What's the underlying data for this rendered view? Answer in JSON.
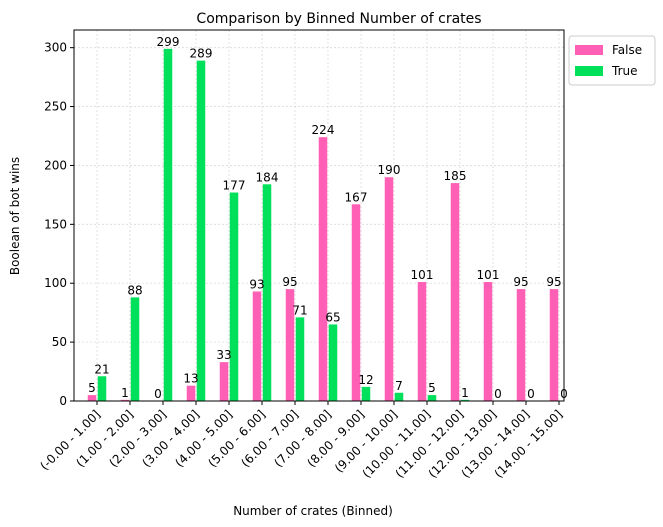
{
  "chart_data": {
    "type": "bar",
    "title": "Comparison by Binned Number of crates",
    "xlabel": "Number of crates (Binned)",
    "ylabel": "Boolean of bot wins",
    "categories": [
      "(-0.00 -  1.00]",
      "(1.00 -  2.00]",
      "(2.00 -  3.00]",
      "(3.00 -  4.00]",
      "(4.00 -  5.00]",
      "(5.00 -  6.00]",
      "(6.00 -  7.00]",
      "(7.00 -  8.00]",
      "(8.00 -  9.00]",
      "(9.00 -  10.00]",
      "(10.00 -  11.00]",
      "(11.00 -  12.00]",
      "(12.00 -  13.00]",
      "(13.00 -  14.00]",
      "(14.00 -  15.00]"
    ],
    "series": [
      {
        "name": "False",
        "color": "#ff5fb4",
        "values": [
          5,
          1,
          0,
          13,
          33,
          93,
          95,
          224,
          167,
          190,
          101,
          185,
          101,
          95,
          95
        ]
      },
      {
        "name": "True",
        "color": "#00e05a",
        "values": [
          21,
          88,
          299,
          289,
          177,
          184,
          71,
          65,
          12,
          7,
          5,
          1,
          0,
          0,
          0
        ]
      }
    ],
    "ylim": [
      0,
      315
    ],
    "yticks": [
      0,
      50,
      100,
      150,
      200,
      250,
      300
    ],
    "grid": true,
    "legend_position": "outside-top-right"
  }
}
